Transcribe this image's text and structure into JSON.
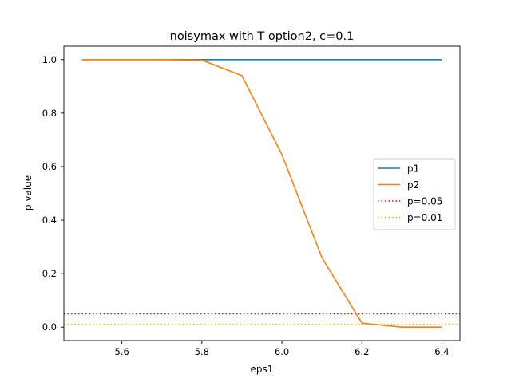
{
  "chart_data": {
    "type": "line",
    "title": "noisymax with T option2, c=0.1",
    "xlabel": "eps1",
    "ylabel": "p value",
    "xlim": [
      5.455,
      6.445
    ],
    "ylim": [
      -0.05,
      1.05
    ],
    "xticks": [
      5.6,
      5.8,
      6.0,
      6.2,
      6.4
    ],
    "xtick_labels": [
      "5.6",
      "5.8",
      "6.0",
      "6.2",
      "6.4"
    ],
    "yticks": [
      0.0,
      0.2,
      0.4,
      0.6,
      0.8,
      1.0
    ],
    "ytick_labels": [
      "0.0",
      "0.2",
      "0.4",
      "0.6",
      "0.8",
      "1.0"
    ],
    "grid": false,
    "legend_position": "center-right",
    "series": [
      {
        "name": "p1",
        "color": "#1f77b4",
        "style": "solid",
        "x": [
          5.5,
          5.6,
          5.7,
          5.8,
          5.9,
          6.0,
          6.1,
          6.2,
          6.3,
          6.4
        ],
        "y": [
          1.0,
          1.0,
          1.0,
          1.0,
          1.0,
          1.0,
          1.0,
          1.0,
          1.0,
          1.0
        ]
      },
      {
        "name": "p2",
        "color": "#ff7f0e",
        "style": "solid",
        "x": [
          5.5,
          5.6,
          5.7,
          5.8,
          5.9,
          6.0,
          6.1,
          6.2,
          6.3,
          6.4
        ],
        "y": [
          1.0,
          1.0,
          1.0,
          0.998,
          0.94,
          0.645,
          0.26,
          0.015,
          0.0,
          0.0
        ]
      }
    ],
    "hlines": [
      {
        "name": "p=0.05",
        "y": 0.05,
        "color": "#ff0000",
        "style": "dotted"
      },
      {
        "name": "p=0.01",
        "y": 0.01,
        "color": "#d4b000",
        "style": "dotted"
      }
    ]
  }
}
